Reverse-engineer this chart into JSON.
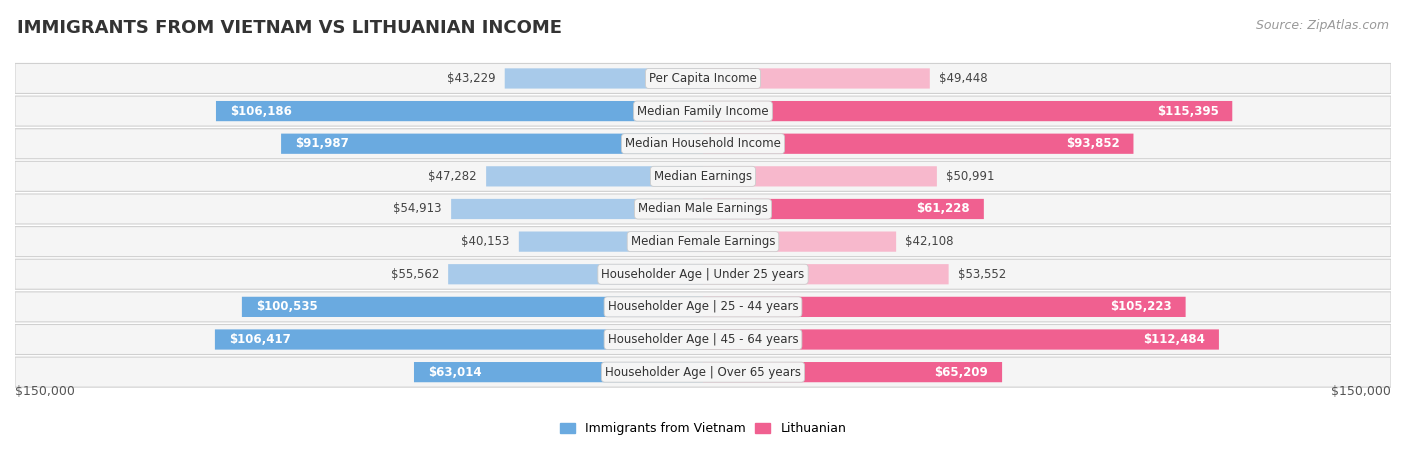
{
  "title": "IMMIGRANTS FROM VIETNAM VS LITHUANIAN INCOME",
  "source": "Source: ZipAtlas.com",
  "categories": [
    "Per Capita Income",
    "Median Family Income",
    "Median Household Income",
    "Median Earnings",
    "Median Male Earnings",
    "Median Female Earnings",
    "Householder Age | Under 25 years",
    "Householder Age | 25 - 44 years",
    "Householder Age | 45 - 64 years",
    "Householder Age | Over 65 years"
  ],
  "vietnam_values": [
    43229,
    106186,
    91987,
    47282,
    54913,
    40153,
    55562,
    100535,
    106417,
    63014
  ],
  "lithuanian_values": [
    49448,
    115395,
    93852,
    50991,
    61228,
    42108,
    53552,
    105223,
    112484,
    65209
  ],
  "vietnam_color_dark": "#6aaae0",
  "vietnam_color_light": "#a8caea",
  "lithuanian_color_dark": "#f06090",
  "lithuanian_color_light": "#f7b8cc",
  "vietnam_label": "Immigrants from Vietnam",
  "lithuanian_label": "Lithuanian",
  "max_value": 150000,
  "axis_label": "$150,000",
  "bg_color": "#ffffff",
  "row_bg_even": "#f2f2f2",
  "row_bg_odd": "#e8e8e8",
  "title_fontsize": 13,
  "source_fontsize": 9,
  "bar_label_fontsize": 8.5,
  "category_fontsize": 8.5,
  "axis_fontsize": 9,
  "legend_fontsize": 9,
  "inside_threshold": 60000
}
